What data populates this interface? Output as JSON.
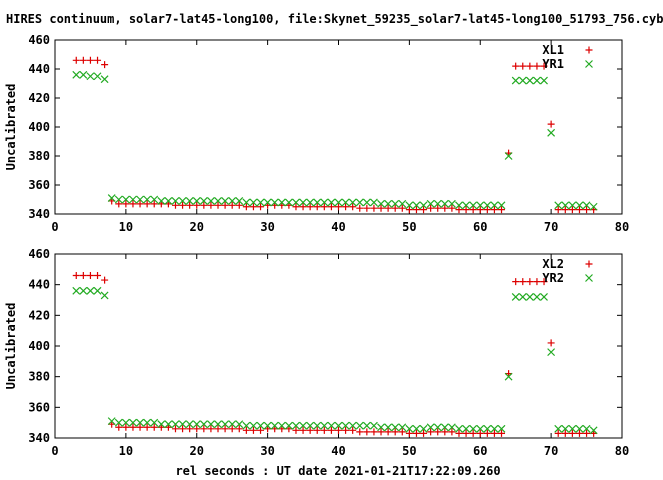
{
  "title": "HIRES continuum, solar7-lat45-long100, file:Skynet_59235_solar7-lat45-long100_51793_756.cyb",
  "colors": {
    "red": "#dd0000",
    "green": "#22aa22"
  },
  "chart_data": [
    {
      "type": "scatter",
      "xlabel": "",
      "ylabel": "Uncalibrated",
      "xlim": [
        0,
        80
      ],
      "ylim": [
        340,
        460
      ],
      "xticks": [
        "0",
        "10",
        "20",
        "30",
        "40",
        "50",
        "60",
        "70",
        "80"
      ],
      "yticks": [
        "340",
        "360",
        "380",
        "400",
        "420",
        "440",
        "460"
      ],
      "legend_position": "top-right",
      "series": [
        {
          "name": "XL1",
          "marker": "plus",
          "x": [
            3,
            4,
            5,
            6,
            7,
            8,
            9,
            10,
            11,
            12,
            13,
            14,
            15,
            16,
            17,
            18,
            19,
            20,
            21,
            22,
            23,
            24,
            25,
            26,
            27,
            28,
            29,
            30,
            31,
            32,
            33,
            34,
            35,
            36,
            37,
            38,
            39,
            40,
            41,
            42,
            43,
            44,
            45,
            46,
            47,
            48,
            49,
            50,
            51,
            52,
            53,
            54,
            55,
            56,
            57,
            58,
            59,
            60,
            61,
            62,
            63,
            64,
            65,
            66,
            67,
            68,
            69,
            70,
            71,
            72,
            73,
            74,
            75,
            76
          ],
          "y": [
            446,
            446,
            446,
            446,
            443,
            349,
            347,
            347,
            347,
            347,
            347,
            347,
            347,
            347,
            346,
            346,
            346,
            346,
            346,
            346,
            346,
            346,
            346,
            346,
            345,
            345,
            345,
            346,
            346,
            346,
            346,
            345,
            345,
            345,
            345,
            345,
            345,
            345,
            345,
            345,
            344,
            344,
            344,
            344,
            344,
            344,
            344,
            343,
            343,
            343,
            344,
            344,
            344,
            344,
            343,
            343,
            343,
            343,
            343,
            343,
            343,
            382,
            442,
            442,
            442,
            442,
            442,
            402,
            343,
            343,
            343,
            343,
            343,
            343
          ],
          "color": "#dd0000"
        },
        {
          "name": "YR1",
          "marker": "cross",
          "x": [
            3,
            4,
            5,
            6,
            7,
            8,
            9,
            10,
            11,
            12,
            13,
            14,
            15,
            16,
            17,
            18,
            19,
            20,
            21,
            22,
            23,
            24,
            25,
            26,
            27,
            28,
            29,
            30,
            31,
            32,
            33,
            34,
            35,
            36,
            37,
            38,
            39,
            40,
            41,
            42,
            43,
            44,
            45,
            46,
            47,
            48,
            49,
            50,
            51,
            52,
            53,
            54,
            55,
            56,
            57,
            58,
            59,
            60,
            61,
            62,
            63,
            64,
            65,
            66,
            67,
            68,
            69,
            70,
            71,
            72,
            73,
            74,
            75,
            76
          ],
          "y": [
            436,
            436,
            435,
            435,
            433,
            351,
            350,
            350,
            350,
            350,
            350,
            350,
            349,
            349,
            349,
            349,
            349,
            349,
            349,
            349,
            349,
            349,
            349,
            349,
            348,
            348,
            348,
            348,
            348,
            348,
            348,
            348,
            348,
            348,
            348,
            348,
            348,
            348,
            348,
            348,
            348,
            348,
            348,
            347,
            347,
            347,
            347,
            346,
            346,
            346,
            347,
            347,
            347,
            347,
            346,
            346,
            346,
            346,
            346,
            346,
            346,
            380,
            432,
            432,
            432,
            432,
            432,
            396,
            346,
            346,
            346,
            346,
            346,
            345
          ],
          "color": "#22aa22"
        }
      ]
    },
    {
      "type": "scatter",
      "xlabel": "rel seconds : UT date 2021-01-21T17:22:09.260",
      "ylabel": "Uncalibrated",
      "xlim": [
        0,
        80
      ],
      "ylim": [
        340,
        460
      ],
      "xticks": [
        "0",
        "10",
        "20",
        "30",
        "40",
        "50",
        "60",
        "70",
        "80"
      ],
      "yticks": [
        "340",
        "360",
        "380",
        "400",
        "420",
        "440",
        "460"
      ],
      "legend_position": "top-right",
      "series": [
        {
          "name": "XL2",
          "marker": "plus",
          "x": [
            3,
            4,
            5,
            6,
            7,
            8,
            9,
            10,
            11,
            12,
            13,
            14,
            15,
            16,
            17,
            18,
            19,
            20,
            21,
            22,
            23,
            24,
            25,
            26,
            27,
            28,
            29,
            30,
            31,
            32,
            33,
            34,
            35,
            36,
            37,
            38,
            39,
            40,
            41,
            42,
            43,
            44,
            45,
            46,
            47,
            48,
            49,
            50,
            51,
            52,
            53,
            54,
            55,
            56,
            57,
            58,
            59,
            60,
            61,
            62,
            63,
            64,
            65,
            66,
            67,
            68,
            69,
            70,
            71,
            72,
            73,
            74,
            75,
            76
          ],
          "y": [
            446,
            446,
            446,
            446,
            443,
            349,
            347,
            347,
            347,
            347,
            347,
            347,
            347,
            347,
            346,
            346,
            346,
            346,
            346,
            346,
            346,
            346,
            346,
            346,
            345,
            345,
            345,
            346,
            346,
            346,
            346,
            345,
            345,
            345,
            345,
            345,
            345,
            345,
            345,
            345,
            344,
            344,
            344,
            344,
            344,
            344,
            344,
            343,
            343,
            343,
            344,
            344,
            344,
            344,
            343,
            343,
            343,
            343,
            343,
            343,
            343,
            382,
            442,
            442,
            442,
            442,
            442,
            402,
            343,
            343,
            343,
            343,
            343,
            343
          ],
          "color": "#dd0000"
        },
        {
          "name": "YR2",
          "marker": "cross",
          "x": [
            3,
            4,
            5,
            6,
            7,
            8,
            9,
            10,
            11,
            12,
            13,
            14,
            15,
            16,
            17,
            18,
            19,
            20,
            21,
            22,
            23,
            24,
            25,
            26,
            27,
            28,
            29,
            30,
            31,
            32,
            33,
            34,
            35,
            36,
            37,
            38,
            39,
            40,
            41,
            42,
            43,
            44,
            45,
            46,
            47,
            48,
            49,
            50,
            51,
            52,
            53,
            54,
            55,
            56,
            57,
            58,
            59,
            60,
            61,
            62,
            63,
            64,
            65,
            66,
            67,
            68,
            69,
            70,
            71,
            72,
            73,
            74,
            75,
            76
          ],
          "y": [
            436,
            436,
            436,
            436,
            433,
            351,
            350,
            350,
            350,
            350,
            350,
            350,
            349,
            349,
            349,
            349,
            349,
            349,
            349,
            349,
            349,
            349,
            349,
            349,
            348,
            348,
            348,
            348,
            348,
            348,
            348,
            348,
            348,
            348,
            348,
            348,
            348,
            348,
            348,
            348,
            348,
            348,
            348,
            347,
            347,
            347,
            347,
            346,
            346,
            346,
            347,
            347,
            347,
            347,
            346,
            346,
            346,
            346,
            346,
            346,
            346,
            380,
            432,
            432,
            432,
            432,
            432,
            396,
            346,
            346,
            346,
            346,
            346,
            345
          ],
          "color": "#22aa22"
        }
      ]
    }
  ]
}
